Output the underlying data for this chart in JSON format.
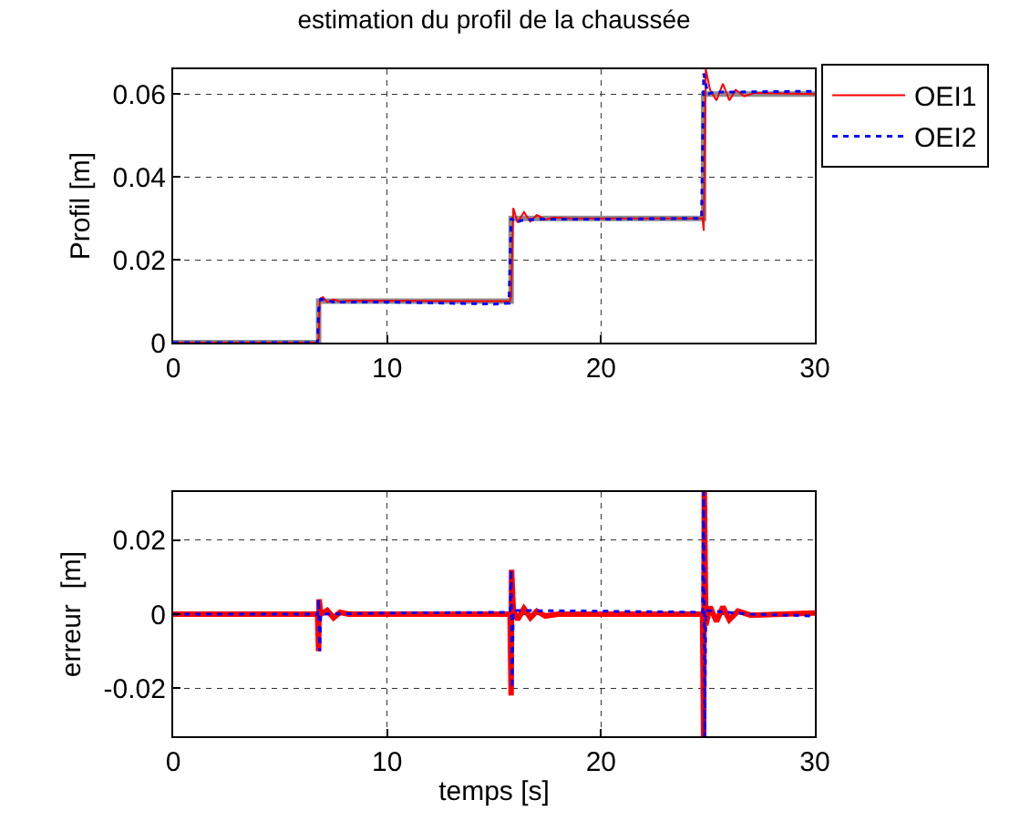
{
  "chart_data": [
    {
      "type": "line",
      "title": "estimation du profil de la chaussée",
      "ylabel": "Profil [m]",
      "xlim": [
        0,
        30
      ],
      "ylim": [
        0,
        0.066
      ],
      "xticks": [
        0,
        10,
        20,
        30
      ],
      "yticks": [
        0,
        0.02,
        0.04,
        0.06
      ],
      "grid": true,
      "legend": "top right",
      "series": [
        {
          "color": "#8c8c8c",
          "line_style": "solid",
          "x": [
            0,
            6.8,
            6.8,
            15.8,
            15.8,
            24.8,
            24.8,
            30
          ],
          "values": [
            0,
            0,
            0.01,
            0.01,
            0.03,
            0.03,
            0.06,
            0.06
          ]
        },
        {
          "name": "OEI1",
          "color": "#ff0000",
          "line_style": "solid",
          "x": [
            0,
            6.75,
            6.8,
            6.85,
            7.0,
            7.2,
            7.5,
            7.8,
            8.2,
            15.75,
            15.8,
            15.9,
            16.1,
            16.4,
            16.7,
            17,
            17.4,
            17.8,
            18.5,
            24.75,
            24.8,
            24.9,
            25.1,
            25.4,
            25.7,
            26.0,
            26.3,
            26.7,
            27.2,
            30
          ],
          "values": [
            0,
            0,
            0.0005,
            0.0105,
            0.011,
            0.0098,
            0.0104,
            0.0099,
            0.0101,
            0.01,
            0.011,
            0.0325,
            0.029,
            0.0315,
            0.0292,
            0.0308,
            0.0297,
            0.0302,
            0.03,
            0.03,
            0.027,
            0.066,
            0.061,
            0.0585,
            0.0625,
            0.0585,
            0.061,
            0.0595,
            0.0603,
            0.06
          ]
        },
        {
          "name": "OEI2",
          "color": "#0000ff",
          "line_style": "dotted",
          "x": [
            0,
            6.75,
            6.8,
            6.9,
            7.5,
            10,
            15,
            15.7,
            15.8,
            16,
            16.3,
            17,
            20,
            24.7,
            24.8,
            25.0,
            25.3,
            26,
            30
          ],
          "values": [
            0,
            0,
            0.008,
            0.0105,
            0.0098,
            0.0098,
            0.0093,
            0.0095,
            0.03,
            0.029,
            0.0295,
            0.0298,
            0.0298,
            0.03,
            0.065,
            0.06,
            0.0605,
            0.0605,
            0.0607
          ]
        }
      ]
    },
    {
      "type": "line",
      "xlabel": "temps [s]",
      "ylabel": "erreur  [m]",
      "xlim": [
        0,
        30
      ],
      "ylim": [
        -0.033,
        0.033
      ],
      "xticks": [
        0,
        10,
        20,
        30
      ],
      "yticks": [
        -0.02,
        0,
        0.02
      ],
      "grid": true,
      "series": [
        {
          "color": "#ff0000",
          "line_style": "solid",
          "x": [
            0,
            6.75,
            6.8,
            6.82,
            6.9,
            7.2,
            7.5,
            7.8,
            8.2,
            15.75,
            15.8,
            15.82,
            15.9,
            16.1,
            16.4,
            16.7,
            17,
            17.4,
            18,
            24.75,
            24.8,
            24.83,
            24.9,
            25.1,
            25.4,
            25.7,
            26,
            26.4,
            27,
            30
          ],
          "values": [
            0,
            0,
            -0.01,
            0.004,
            0,
            0.001,
            -0.001,
            0.0005,
            0,
            0,
            -0.022,
            0.012,
            0.001,
            -0.0015,
            0.0015,
            -0.001,
            0.0008,
            -0.0005,
            0,
            0,
            -0.033,
            0.033,
            -0.003,
            0.002,
            -0.002,
            0.002,
            -0.0015,
            0.0008,
            -0.0003,
            0.0003
          ]
        },
        {
          "color": "#0000ff",
          "line_style": "dotted",
          "x": [
            0,
            6.75,
            6.8,
            6.85,
            6.9,
            10,
            15.75,
            15.8,
            15.85,
            15.9,
            20,
            24.75,
            24.8,
            24.85,
            24.9,
            27,
            30
          ],
          "values": [
            0,
            0,
            0.004,
            -0.01,
            0,
            0.0003,
            0.0005,
            0.012,
            -0.02,
            0.001,
            0.0008,
            0.0005,
            0.033,
            -0.033,
            0.001,
            0,
            -0.0005
          ]
        }
      ]
    }
  ]
}
